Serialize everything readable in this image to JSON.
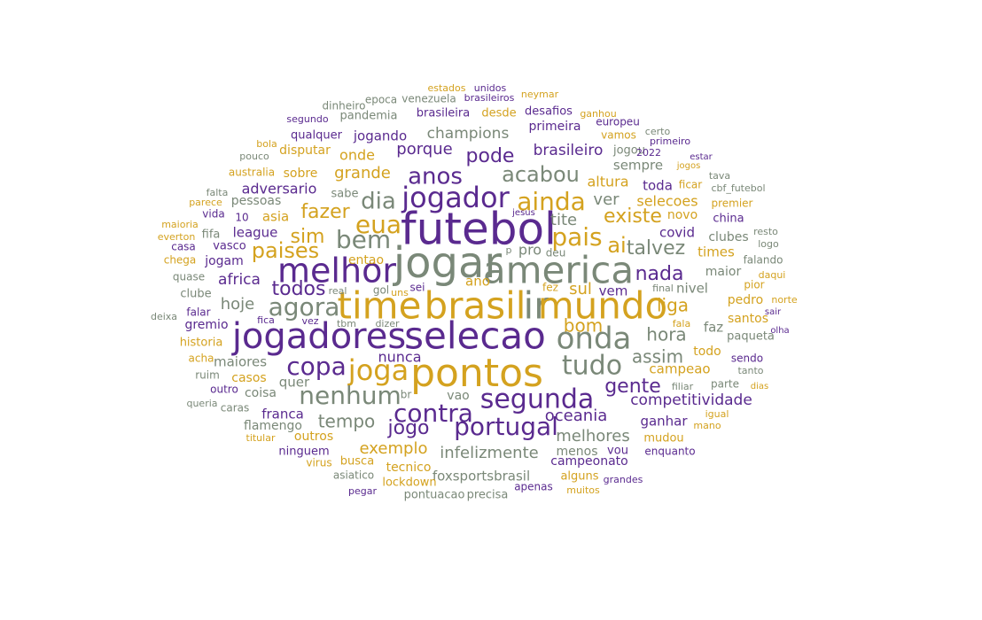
{
  "colors": {
    "purple": "#5a2a8f",
    "gold": "#d4a21f",
    "gray": "#7a8878"
  },
  "words": [
    {
      "text": "futebol",
      "color": "purple"
    },
    {
      "text": "jogar",
      "color": "gray"
    },
    {
      "text": "america",
      "color": "gray"
    },
    {
      "text": "melhor",
      "color": "purple"
    },
    {
      "text": "time",
      "color": "gold"
    },
    {
      "text": "brasil",
      "color": "gold"
    },
    {
      "text": "ir",
      "color": "gray"
    },
    {
      "text": "mundo",
      "color": "gold"
    },
    {
      "text": "jogadores",
      "color": "purple"
    },
    {
      "text": "selecao",
      "color": "purple"
    },
    {
      "text": "pontos",
      "color": "gold"
    },
    {
      "text": "onda",
      "color": "gray"
    },
    {
      "text": "jogador",
      "color": "purple"
    },
    {
      "text": "bem",
      "color": "gray"
    },
    {
      "text": "eua",
      "color": "gold"
    },
    {
      "text": "dia",
      "color": "gray"
    },
    {
      "text": "ainda",
      "color": "gold"
    },
    {
      "text": "pais",
      "color": "gold"
    },
    {
      "text": "agora",
      "color": "gray"
    },
    {
      "text": "joga",
      "color": "gold"
    },
    {
      "text": "tudo",
      "color": "gray"
    },
    {
      "text": "copa",
      "color": "purple"
    },
    {
      "text": "nenhum",
      "color": "gray"
    },
    {
      "text": "segunda",
      "color": "purple"
    },
    {
      "text": "contra",
      "color": "purple"
    },
    {
      "text": "portugal",
      "color": "purple"
    },
    {
      "text": "anos",
      "color": "purple"
    },
    {
      "text": "acabou",
      "color": "gray"
    },
    {
      "text": "pode",
      "color": "purple"
    },
    {
      "text": "talvez",
      "color": "gray"
    },
    {
      "text": "ai",
      "color": "gold"
    },
    {
      "text": "paises",
      "color": "gold"
    },
    {
      "text": "fazer",
      "color": "gold"
    },
    {
      "text": "sim",
      "color": "gold"
    },
    {
      "text": "todos",
      "color": "purple"
    },
    {
      "text": "existe",
      "color": "gold"
    },
    {
      "text": "nada",
      "color": "purple"
    },
    {
      "text": "hora",
      "color": "gray"
    },
    {
      "text": "gente",
      "color": "purple"
    },
    {
      "text": "liga",
      "color": "gold"
    },
    {
      "text": "bom",
      "color": "gold"
    },
    {
      "text": "assim",
      "color": "gray"
    },
    {
      "text": "sul",
      "color": "gold"
    },
    {
      "text": "jogo",
      "color": "purple"
    },
    {
      "text": "tempo",
      "color": "gray"
    },
    {
      "text": "oceania",
      "color": "purple"
    },
    {
      "text": "melhores",
      "color": "gray"
    },
    {
      "text": "competitividade",
      "color": "purple"
    },
    {
      "text": "infelizmente",
      "color": "gray"
    },
    {
      "text": "exemplo",
      "color": "gold"
    },
    {
      "text": "foxsportsbrasil",
      "color": "gray"
    },
    {
      "text": "champions",
      "color": "gray"
    },
    {
      "text": "porque",
      "color": "purple"
    },
    {
      "text": "brasileiro",
      "color": "purple"
    },
    {
      "text": "grande",
      "color": "gold"
    },
    {
      "text": "adversario",
      "color": "purple"
    },
    {
      "text": "onde",
      "color": "gold"
    },
    {
      "text": "tite",
      "color": "gray"
    },
    {
      "text": "ver",
      "color": "gray"
    },
    {
      "text": "altura",
      "color": "gold"
    },
    {
      "text": "toda",
      "color": "purple"
    },
    {
      "text": "selecoes",
      "color": "gold"
    },
    {
      "text": "covid",
      "color": "purple"
    },
    {
      "text": "hoje",
      "color": "gray"
    },
    {
      "text": "africa",
      "color": "purple"
    },
    {
      "text": "league",
      "color": "purple"
    },
    {
      "text": "asia",
      "color": "gold"
    },
    {
      "text": "jogam",
      "color": "purple"
    },
    {
      "text": "nivel",
      "color": "gray"
    },
    {
      "text": "vem",
      "color": "purple"
    },
    {
      "text": "faz",
      "color": "gray"
    },
    {
      "text": "pedro",
      "color": "gold"
    },
    {
      "text": "maiores",
      "color": "gray"
    },
    {
      "text": "nunca",
      "color": "purple"
    },
    {
      "text": "quer",
      "color": "gray"
    },
    {
      "text": "campeao",
      "color": "gold"
    },
    {
      "text": "ganhar",
      "color": "purple"
    },
    {
      "text": "franca",
      "color": "purple"
    },
    {
      "text": "flamengo",
      "color": "gray"
    },
    {
      "text": "outros",
      "color": "gold"
    },
    {
      "text": "casos",
      "color": "gold"
    },
    {
      "text": "coisa",
      "color": "gray"
    },
    {
      "text": "sempre",
      "color": "gray"
    },
    {
      "text": "times",
      "color": "gold"
    },
    {
      "text": "clubes",
      "color": "gray"
    },
    {
      "text": "novo",
      "color": "gold"
    },
    {
      "text": "maior",
      "color": "gray"
    },
    {
      "text": "pior",
      "color": "gold"
    },
    {
      "text": "santos",
      "color": "gold"
    },
    {
      "text": "paqueta",
      "color": "gray"
    },
    {
      "text": "todo",
      "color": "gold"
    },
    {
      "text": "sendo",
      "color": "purple"
    },
    {
      "text": "jogando",
      "color": "purple"
    },
    {
      "text": "primeira",
      "color": "purple"
    },
    {
      "text": "brasileira",
      "color": "purple"
    },
    {
      "text": "desde",
      "color": "gold"
    },
    {
      "text": "desafios",
      "color": "purple"
    },
    {
      "text": "europeu",
      "color": "purple"
    },
    {
      "text": "vamos",
      "color": "gold"
    },
    {
      "text": "jogou",
      "color": "gray"
    },
    {
      "text": "sobre",
      "color": "gold"
    },
    {
      "text": "disputar",
      "color": "gold"
    },
    {
      "text": "qualquer",
      "color": "purple"
    },
    {
      "text": "pandemia",
      "color": "gray"
    },
    {
      "text": "venezuela",
      "color": "gray"
    },
    {
      "text": "estados",
      "color": "gold"
    },
    {
      "text": "unidos",
      "color": "purple"
    },
    {
      "text": "brasileiros",
      "color": "purple"
    },
    {
      "text": "neymar",
      "color": "gold"
    },
    {
      "text": "ganhou",
      "color": "gold"
    },
    {
      "text": "certo",
      "color": "gray"
    },
    {
      "text": "primeiro",
      "color": "purple"
    },
    {
      "text": "2022",
      "color": "purple"
    },
    {
      "text": "estar",
      "color": "purple"
    },
    {
      "text": "jogos",
      "color": "gold"
    },
    {
      "text": "tava",
      "color": "gray"
    },
    {
      "text": "cbf_futebol",
      "color": "gray"
    },
    {
      "text": "premier",
      "color": "gold"
    },
    {
      "text": "china",
      "color": "purple"
    },
    {
      "text": "resto",
      "color": "gray"
    },
    {
      "text": "logo",
      "color": "gray"
    },
    {
      "text": "falando",
      "color": "gray"
    },
    {
      "text": "daqui",
      "color": "gold"
    },
    {
      "text": "norte",
      "color": "gold"
    },
    {
      "text": "sair",
      "color": "purple"
    },
    {
      "text": "olha",
      "color": "purple"
    },
    {
      "text": "tanto",
      "color": "gray"
    },
    {
      "text": "parte",
      "color": "gray"
    },
    {
      "text": "dias",
      "color": "gold"
    },
    {
      "text": "filiar",
      "color": "gray"
    },
    {
      "text": "igual",
      "color": "gold"
    },
    {
      "text": "mano",
      "color": "gold"
    },
    {
      "text": "mudou",
      "color": "gold"
    },
    {
      "text": "enquanto",
      "color": "purple"
    },
    {
      "text": "vou",
      "color": "purple"
    },
    {
      "text": "menos",
      "color": "gray"
    },
    {
      "text": "campeonato",
      "color": "purple"
    },
    {
      "text": "alguns",
      "color": "gold"
    },
    {
      "text": "grandes",
      "color": "purple"
    },
    {
      "text": "muitos",
      "color": "gold"
    },
    {
      "text": "apenas",
      "color": "purple"
    },
    {
      "text": "precisa",
      "color": "gray"
    },
    {
      "text": "pontuacao",
      "color": "gray"
    },
    {
      "text": "lockdown",
      "color": "gold"
    },
    {
      "text": "tecnico",
      "color": "gold"
    },
    {
      "text": "asiatico",
      "color": "gray"
    },
    {
      "text": "pegar",
      "color": "purple"
    },
    {
      "text": "busca",
      "color": "gold"
    },
    {
      "text": "virus",
      "color": "gold"
    },
    {
      "text": "ninguem",
      "color": "purple"
    },
    {
      "text": "titular",
      "color": "gold"
    },
    {
      "text": "caras",
      "color": "gray"
    },
    {
      "text": "queria",
      "color": "gray"
    },
    {
      "text": "outro",
      "color": "purple"
    },
    {
      "text": "ruim",
      "color": "gray"
    },
    {
      "text": "acha",
      "color": "gold"
    },
    {
      "text": "historia",
      "color": "gold"
    },
    {
      "text": "gremio",
      "color": "purple"
    },
    {
      "text": "falar",
      "color": "purple"
    },
    {
      "text": "deixa",
      "color": "gray"
    },
    {
      "text": "clube",
      "color": "gray"
    },
    {
      "text": "quase",
      "color": "gray"
    },
    {
      "text": "chega",
      "color": "gold"
    },
    {
      "text": "casa",
      "color": "purple"
    },
    {
      "text": "everton",
      "color": "gold"
    },
    {
      "text": "maioria",
      "color": "gold"
    },
    {
      "text": "vida",
      "color": "purple"
    },
    {
      "text": "parece",
      "color": "gold"
    },
    {
      "text": "falta",
      "color": "gray"
    },
    {
      "text": "australia",
      "color": "gold"
    },
    {
      "text": "pouco",
      "color": "gray"
    },
    {
      "text": "bola",
      "color": "gold"
    },
    {
      "text": "segundo",
      "color": "purple"
    },
    {
      "text": "dinheiro",
      "color": "gray"
    },
    {
      "text": "epoca",
      "color": "gray"
    },
    {
      "text": "pessoas",
      "color": "gray"
    },
    {
      "text": "sabe",
      "color": "gray"
    },
    {
      "text": "10",
      "color": "purple"
    },
    {
      "text": "fifa",
      "color": "gray"
    },
    {
      "text": "vasco",
      "color": "purple"
    },
    {
      "text": "entao",
      "color": "gold"
    },
    {
      "text": "pro",
      "color": "gray"
    },
    {
      "text": "p",
      "color": "gray"
    },
    {
      "text": "jesus",
      "color": "purple"
    },
    {
      "text": "deu",
      "color": "gray"
    },
    {
      "text": "fez",
      "color": "gold"
    },
    {
      "text": "final",
      "color": "gray"
    },
    {
      "text": "ano",
      "color": "gold"
    },
    {
      "text": "sei",
      "color": "purple"
    },
    {
      "text": "uns",
      "color": "gold"
    },
    {
      "text": "gol",
      "color": "gray"
    },
    {
      "text": "real",
      "color": "gray"
    },
    {
      "text": "fica",
      "color": "purple"
    },
    {
      "text": "vez",
      "color": "purple"
    },
    {
      "text": "tbm",
      "color": "gray"
    },
    {
      "text": "dizer",
      "color": "gray"
    },
    {
      "text": "br",
      "color": "gray"
    },
    {
      "text": "vao",
      "color": "gray"
    },
    {
      "text": "fala",
      "color": "gold"
    },
    {
      "text": "ficar",
      "color": "gold"
    }
  ]
}
